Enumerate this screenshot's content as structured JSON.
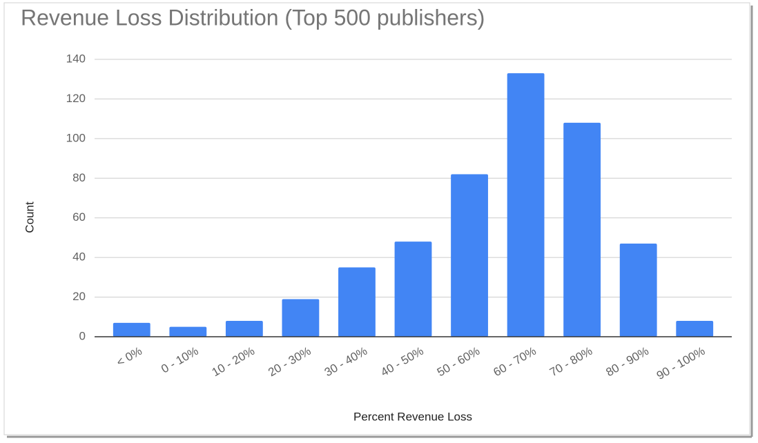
{
  "chart_data": {
    "type": "bar",
    "title": "Revenue Loss Distribution (Top 500 publishers)",
    "x_label": "Percent Revenue Loss",
    "y_label": "Count",
    "categories": [
      "< 0%",
      "0 - 10%",
      "10 - 20%",
      "20 - 30%",
      "30 - 40%",
      "40 - 50%",
      "50 - 60%",
      "60 - 70%",
      "70 - 80%",
      "80 - 90%",
      "90 - 100%"
    ],
    "values": [
      7,
      5,
      8,
      19,
      35,
      48,
      82,
      133,
      108,
      47,
      8
    ],
    "color": "#4285f4",
    "ylim": [
      0,
      140
    ],
    "yticks": [
      0,
      20,
      40,
      60,
      80,
      100,
      120,
      140
    ],
    "grid": true
  }
}
